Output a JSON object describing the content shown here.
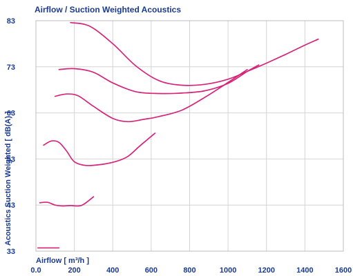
{
  "chart_data": {
    "type": "line",
    "title": "Airflow / Suction Weighted Acoustics",
    "xlabel": "Airflow [ m³/h ]",
    "ylabel": "Acoustics Suction Weighted [ dB(A) ]",
    "xlim": [
      0,
      1600
    ],
    "ylim": [
      33,
      83
    ],
    "xticks": [
      "0.0",
      "200",
      "400",
      "600",
      "800",
      "1000",
      "1200",
      "1400",
      "1600"
    ],
    "yticks": [
      "33",
      "43",
      "53",
      "63",
      "73",
      "83"
    ],
    "grid": true,
    "legend": "none",
    "series_color": "#d6247a",
    "series": [
      {
        "x": [
          180,
          280,
          400,
          520,
          640,
          760,
          880,
          1000,
          1100,
          1200,
          1300,
          1400,
          1470
        ],
        "y": [
          82.6,
          81.8,
          78.0,
          73.2,
          70.0,
          69.0,
          69.2,
          70.3,
          72.0,
          73.8,
          75.7,
          77.7,
          79.0
        ]
      },
      {
        "x": [
          120,
          200,
          300,
          400,
          520,
          640,
          760,
          880,
          1000,
          1100,
          1160
        ],
        "y": [
          72.4,
          72.6,
          71.8,
          69.5,
          67.6,
          67.2,
          67.3,
          67.8,
          69.4,
          72.0,
          73.4
        ]
      },
      {
        "x": [
          100,
          160,
          220,
          300,
          400,
          480,
          560,
          640,
          760,
          880,
          1000,
          1100
        ],
        "y": [
          66.6,
          67.1,
          66.7,
          64.4,
          61.8,
          61.1,
          61.6,
          62.2,
          63.6,
          66.4,
          69.6,
          72.4
        ]
      },
      {
        "x": [
          40,
          80,
          120,
          160,
          200,
          260,
          340,
          420,
          480,
          540,
          620
        ],
        "y": [
          56.0,
          56.9,
          56.6,
          54.7,
          52.4,
          51.6,
          51.8,
          52.5,
          53.6,
          55.8,
          58.6
        ]
      },
      {
        "x": [
          20,
          60,
          100,
          140,
          180,
          220,
          250,
          300
        ],
        "y": [
          43.5,
          43.6,
          43.0,
          42.8,
          42.9,
          42.8,
          43.2,
          44.8
        ]
      },
      {
        "x": [
          10,
          120
        ],
        "y": [
          33.7,
          33.7
        ]
      }
    ]
  }
}
